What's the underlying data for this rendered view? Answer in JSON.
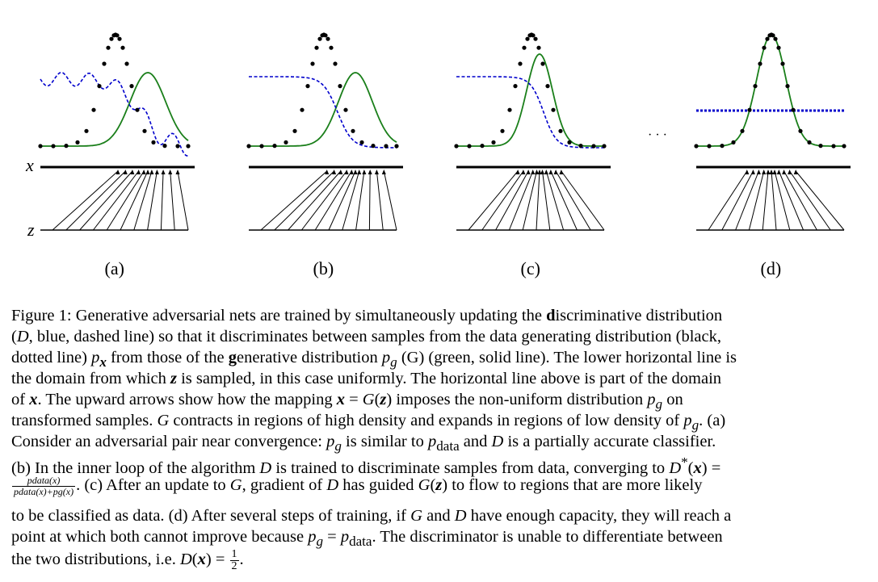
{
  "figure": {
    "axis_x_label": "x",
    "axis_z_label": "z",
    "ellipsis": "· · ·",
    "panels": [
      {
        "label": "(a)",
        "discriminator": "wavy",
        "mode": "a"
      },
      {
        "label": "(b)",
        "discriminator": "sigmoid",
        "mode": "b"
      },
      {
        "label": "(c)",
        "discriminator": "sigmoid-late",
        "mode": "c"
      },
      {
        "label": "(d)",
        "discriminator": "flat",
        "mode": "d"
      }
    ],
    "colors": {
      "data_dots": "#000000",
      "discriminator": "#0000cc",
      "generator": "#1a7f1a",
      "axis": "#000000"
    }
  },
  "caption": {
    "title": "Figure 1:",
    "lines": {
      "l1a": "Generative adversarial nets are trained by simultaneously updating the ",
      "l1b": "d",
      "l1c": "iscriminative distribution",
      "l2a": "(",
      "l2b": "D",
      "l2c": ", blue, dashed line) so that it discriminates between samples from the data generating distribution (black,",
      "l3a": "dotted line) ",
      "l3b": "p",
      "l3c": "x",
      "l3d": " from those of the ",
      "l3e": "g",
      "l3f": "enerative distribution ",
      "l3g": "p",
      "l3h": "g",
      "l3i": " (G) (green, solid line). The lower horizontal line is",
      "l4a": "the domain from which ",
      "l4b": "z",
      "l4c": " is sampled, in this case uniformly. The horizontal line above is part of the domain",
      "l5a": "of ",
      "l5b": "x",
      "l5c": ". The upward arrows show how the mapping ",
      "l5d": "x",
      "l5e": " = ",
      "l5f": "G",
      "l5g": "(",
      "l5h": "z",
      "l5i": ")",
      "l5j": " imposes the non-uniform distribution ",
      "l5k": "p",
      "l5l": "g",
      "l5m": " on",
      "l6a": "transformed samples. ",
      "l6b": "G",
      "l6c": " contracts in regions of high density and expands in regions of low density of ",
      "l6d": "p",
      "l6e": "g",
      "l6f": ". (a)",
      "l7a": "Consider an adversarial pair near convergence: ",
      "l7b": "p",
      "l7c": "g",
      "l7d": " is similar to ",
      "l7e": "p",
      "l7f": "data",
      "l7g": " and ",
      "l7h": "D",
      "l7i": " is a partially accurate classifier.",
      "l8a": "(b) In the inner loop of the algorithm ",
      "l8b": "D",
      "l8c": " is trained to discriminate samples from data, converging to ",
      "l8d": "D",
      "l8e": "*",
      "l8f": "(",
      "l8g": "x",
      "l8h": ") =",
      "l9_num": "pdata(x)",
      "l9_den": "pdata(x)+pg(x)",
      "l9a": ". (c) After an update to ",
      "l9b": "G",
      "l9c": ", gradient of ",
      "l9d": "D",
      "l9e": " has guided ",
      "l9f": "G",
      "l9g": "(",
      "l9h": "z",
      "l9i": ")",
      "l9j": " to flow to regions that are more likely",
      "l10a": "to be classified as data. (d) After several steps of training, if ",
      "l10b": "G",
      "l10c": " and ",
      "l10d": "D",
      "l10e": " have enough capacity, they will reach a",
      "l11a": "point at which both cannot improve because ",
      "l11b": "p",
      "l11c": "g",
      "l11d": " = ",
      "l11e": "p",
      "l11f": "data",
      "l11g": ". The discriminator is unable to differentiate between",
      "l12a": "the two distributions, i.e. ",
      "l12b": "D",
      "l12c": "(",
      "l12d": "x",
      "l12e": ") = ",
      "l12_num": "1",
      "l12_den": "2",
      "l12f": "."
    }
  }
}
